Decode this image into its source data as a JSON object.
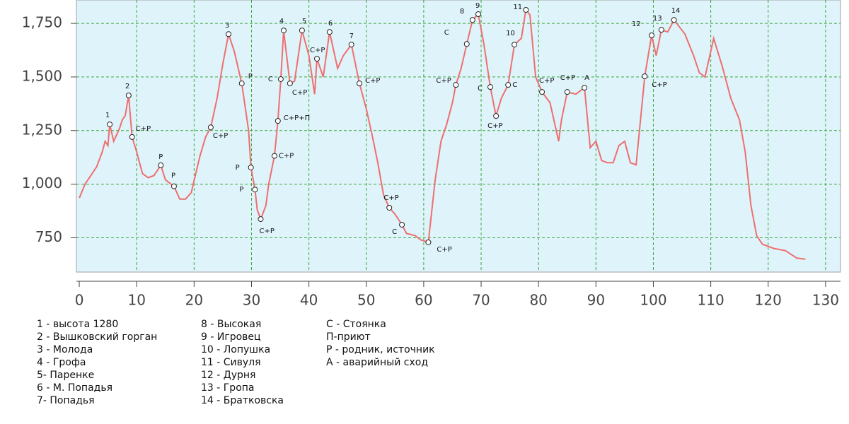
{
  "chart_data": {
    "type": "line",
    "color": "#ee6f6f",
    "grid": true,
    "xlim": [
      -0.5,
      132.6
    ],
    "ylim": [
      590,
      1859
    ],
    "xticks": [
      0,
      10,
      20,
      30,
      40,
      50,
      60,
      70,
      80,
      90,
      100,
      110,
      120,
      130
    ],
    "yticks": [
      750,
      {
        "value": 1000,
        "label": "1,000"
      },
      {
        "value": 1250,
        "label": "1,250"
      },
      {
        "value": 1500,
        "label": "1,500"
      },
      {
        "value": 1750,
        "label": "1,750"
      }
    ],
    "x": [
      0,
      1,
      2,
      3,
      4,
      4.5,
      5,
      5.3,
      6,
      7,
      7.5,
      8,
      8.6,
      9.2,
      10,
      11,
      12,
      13,
      14.2,
      15,
      16.5,
      17.5,
      18.5,
      19.5,
      21,
      22,
      22.9,
      24,
      25,
      26,
      27,
      28.3,
      29.5,
      29.9,
      30.6,
      31,
      31.6,
      32.5,
      33,
      34,
      34.6,
      35.1,
      35.6,
      36.7,
      37.5,
      38.8,
      40,
      41,
      41.4,
      42.5,
      43.6,
      45,
      46,
      47.4,
      48.8,
      50,
      51,
      52,
      53,
      54,
      55,
      56.2,
      57,
      58.5,
      59.5,
      60.8,
      62,
      63,
      64,
      65,
      65.6,
      66.5,
      67.5,
      68.5,
      69.5,
      70.5,
      71.6,
      72.6,
      73.5,
      74.7,
      75.8,
      77,
      77.8,
      78.5,
      79.5,
      80.6,
      82,
      83.5,
      84,
      85,
      86.5,
      88,
      89,
      90,
      91,
      92,
      93,
      94,
      95,
      96,
      97,
      98.5,
      99.7,
      100.5,
      101.4,
      102.5,
      103.6,
      105.5,
      107,
      108,
      109,
      110.5,
      112,
      113.5,
      115,
      116,
      117,
      118,
      119,
      121,
      123,
      125,
      126.5
    ],
    "values": [
      935,
      1000,
      1040,
      1080,
      1150,
      1200,
      1180,
      1279,
      1200,
      1260,
      1300,
      1320,
      1414,
      1220,
      1150,
      1050,
      1030,
      1040,
      1088,
      1020,
      990,
      930,
      930,
      960,
      1130,
      1220,
      1265,
      1400,
      1560,
      1700,
      1620,
      1470,
      1250,
      1078,
      975,
      880,
      837,
      900,
      1000,
      1132,
      1295,
      1490,
      1717,
      1470,
      1480,
      1717,
      1600,
      1420,
      1585,
      1500,
      1710,
      1540,
      1600,
      1651,
      1470,
      1350,
      1230,
      1100,
      950,
      890,
      860,
      811,
      770,
      760,
      740,
      729,
      1020,
      1200,
      1280,
      1380,
      1463,
      1540,
      1654,
      1766,
      1793,
      1650,
      1453,
      1318,
      1400,
      1463,
      1651,
      1680,
      1813,
      1790,
      1500,
      1430,
      1380,
      1200,
      1300,
      1430,
      1420,
      1450,
      1170,
      1200,
      1110,
      1100,
      1100,
      1180,
      1200,
      1100,
      1090,
      1503,
      1694,
      1600,
      1720,
      1710,
      1766,
      1700,
      1600,
      1520,
      1500,
      1680,
      1550,
      1400,
      1300,
      1150,
      900,
      760,
      720,
      700,
      690,
      655,
      650
    ],
    "annotations": [
      {
        "x": 5.3,
        "y": 1279,
        "label": "1"
      },
      {
        "x": 8.6,
        "y": 1414,
        "label": "2"
      },
      {
        "x": 9.2,
        "y": 1220,
        "label": "С+Р"
      },
      {
        "x": 14.2,
        "y": 1088,
        "label": "Р"
      },
      {
        "x": 16.5,
        "y": 990,
        "label": "Р"
      },
      {
        "x": 22.9,
        "y": 1265,
        "label": "С+Р"
      },
      {
        "x": 26,
        "y": 1700,
        "label": "3"
      },
      {
        "x": 28.3,
        "y": 1470,
        "label": "Р"
      },
      {
        "x": 29.9,
        "y": 1078,
        "label": "Р"
      },
      {
        "x": 30.6,
        "y": 975,
        "label": "Р"
      },
      {
        "x": 31.6,
        "y": 837,
        "label": "С+Р"
      },
      {
        "x": 34,
        "y": 1132,
        "label": "С+Р"
      },
      {
        "x": 34.6,
        "y": 1295,
        "label": "С+Р+П"
      },
      {
        "x": 35.1,
        "y": 1490,
        "label": "С"
      },
      {
        "x": 35.6,
        "y": 1717,
        "label": "4"
      },
      {
        "x": 36.7,
        "y": 1470,
        "label": "С+Р"
      },
      {
        "x": 38.8,
        "y": 1717,
        "label": "5"
      },
      {
        "x": 41.4,
        "y": 1585,
        "label": "С+Р"
      },
      {
        "x": 43.6,
        "y": 1710,
        "label": "6"
      },
      {
        "x": 47.4,
        "y": 1651,
        "label": "7"
      },
      {
        "x": 48.8,
        "y": 1470,
        "label": "С+Р"
      },
      {
        "x": 54,
        "y": 890,
        "label": "С+Р"
      },
      {
        "x": 56.2,
        "y": 811,
        "label": "С"
      },
      {
        "x": 60.8,
        "y": 729,
        "label": "С+Р"
      },
      {
        "x": 65.6,
        "y": 1463,
        "label": "С+Р"
      },
      {
        "x": 67.5,
        "y": 1654,
        "label": "С"
      },
      {
        "x": 68.5,
        "y": 1766,
        "label": "8"
      },
      {
        "x": 69.5,
        "y": 1793,
        "label": "9"
      },
      {
        "x": 71.6,
        "y": 1453,
        "label": "С"
      },
      {
        "x": 72.6,
        "y": 1318,
        "label": "С+Р"
      },
      {
        "x": 74.7,
        "y": 1463,
        "label": "С"
      },
      {
        "x": 75.8,
        "y": 1651,
        "label": "10"
      },
      {
        "x": 77.8,
        "y": 1813,
        "label": "11"
      },
      {
        "x": 80.6,
        "y": 1430,
        "label": "С+Р"
      },
      {
        "x": 85,
        "y": 1430,
        "label": "С+Р"
      },
      {
        "x": 88,
        "y": 1450,
        "label": "А"
      },
      {
        "x": 98.5,
        "y": 1503,
        "label": "С+Р"
      },
      {
        "x": 99.7,
        "y": 1694,
        "label": "12"
      },
      {
        "x": 101.4,
        "y": 1720,
        "label": "13"
      },
      {
        "x": 103.6,
        "y": 1766,
        "label": "14"
      }
    ],
    "notes": [
      [
        "1 - высота 1280",
        "2 - Вышковский горган",
        "3 - Молода",
        "4 - Грофа",
        "5- Паренке",
        "6 - М. Попадья",
        "7- Попадья"
      ],
      [
        "8 - Высокая",
        "9 - Игровец",
        "10 - Лопушка",
        "11 - Сивуля",
        "12 - Дурня",
        "13 - Гропа",
        "14 - Братковска"
      ],
      [
        "С - Стоянка",
        "П-приют",
        "Р - родник, источник",
        "А - аварийный сход"
      ]
    ]
  }
}
